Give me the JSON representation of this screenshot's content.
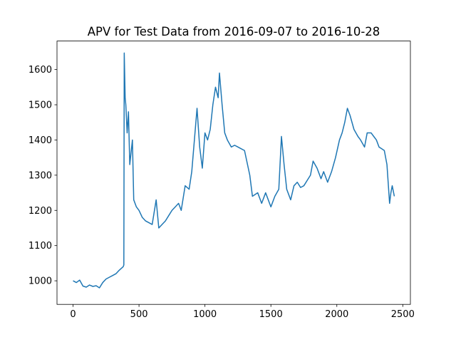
{
  "chart_data": {
    "type": "line",
    "title": "APV for Test Data from 2016-09-07 to 2016-10-28",
    "x": [
      0,
      25,
      50,
      75,
      100,
      125,
      150,
      175,
      200,
      225,
      250,
      275,
      300,
      325,
      350,
      380,
      385,
      388,
      395,
      400,
      410,
      420,
      430,
      450,
      460,
      480,
      500,
      525,
      550,
      575,
      600,
      630,
      650,
      675,
      700,
      725,
      750,
      775,
      800,
      820,
      850,
      880,
      900,
      920,
      940,
      960,
      980,
      1000,
      1020,
      1040,
      1060,
      1080,
      1100,
      1110,
      1130,
      1150,
      1170,
      1200,
      1225,
      1250,
      1275,
      1300,
      1340,
      1360,
      1380,
      1400,
      1430,
      1460,
      1500,
      1530,
      1560,
      1580,
      1600,
      1620,
      1650,
      1675,
      1700,
      1725,
      1750,
      1775,
      1800,
      1820,
      1850,
      1880,
      1900,
      1930,
      1960,
      1990,
      2020,
      2040,
      2060,
      2080,
      2100,
      2130,
      2160,
      2180,
      2210,
      2230,
      2260,
      2280,
      2300,
      2320,
      2340,
      2360,
      2380,
      2400,
      2410,
      2420,
      2436
    ],
    "series": [
      {
        "name": "APV",
        "color": "#1f77b4",
        "values": [
          1000,
          995,
          1002,
          985,
          982,
          988,
          984,
          986,
          980,
          995,
          1005,
          1010,
          1015,
          1020,
          1030,
          1040,
          1045,
          1647,
          1520,
          1500,
          1420,
          1480,
          1330,
          1400,
          1230,
          1210,
          1200,
          1180,
          1170,
          1165,
          1160,
          1230,
          1150,
          1160,
          1170,
          1185,
          1200,
          1210,
          1220,
          1200,
          1270,
          1260,
          1310,
          1400,
          1490,
          1380,
          1320,
          1420,
          1400,
          1430,
          1500,
          1550,
          1520,
          1590,
          1500,
          1420,
          1400,
          1380,
          1385,
          1380,
          1375,
          1370,
          1300,
          1240,
          1245,
          1250,
          1220,
          1250,
          1210,
          1240,
          1260,
          1410,
          1330,
          1260,
          1230,
          1270,
          1280,
          1265,
          1270,
          1285,
          1300,
          1340,
          1320,
          1290,
          1310,
          1280,
          1310,
          1350,
          1400,
          1420,
          1450,
          1490,
          1470,
          1430,
          1410,
          1400,
          1380,
          1420,
          1420,
          1410,
          1400,
          1380,
          1375,
          1370,
          1330,
          1220,
          1250,
          1270,
          1240
        ]
      }
    ],
    "xlim": [
      -121.8,
      2557.8
    ],
    "xticks": [
      0,
      500,
      1000,
      1500,
      2000,
      2500
    ],
    "ylim": [
      933,
      1681
    ],
    "yticks": [
      1000,
      1100,
      1200,
      1300,
      1400,
      1500,
      1600
    ],
    "grid": false
  }
}
